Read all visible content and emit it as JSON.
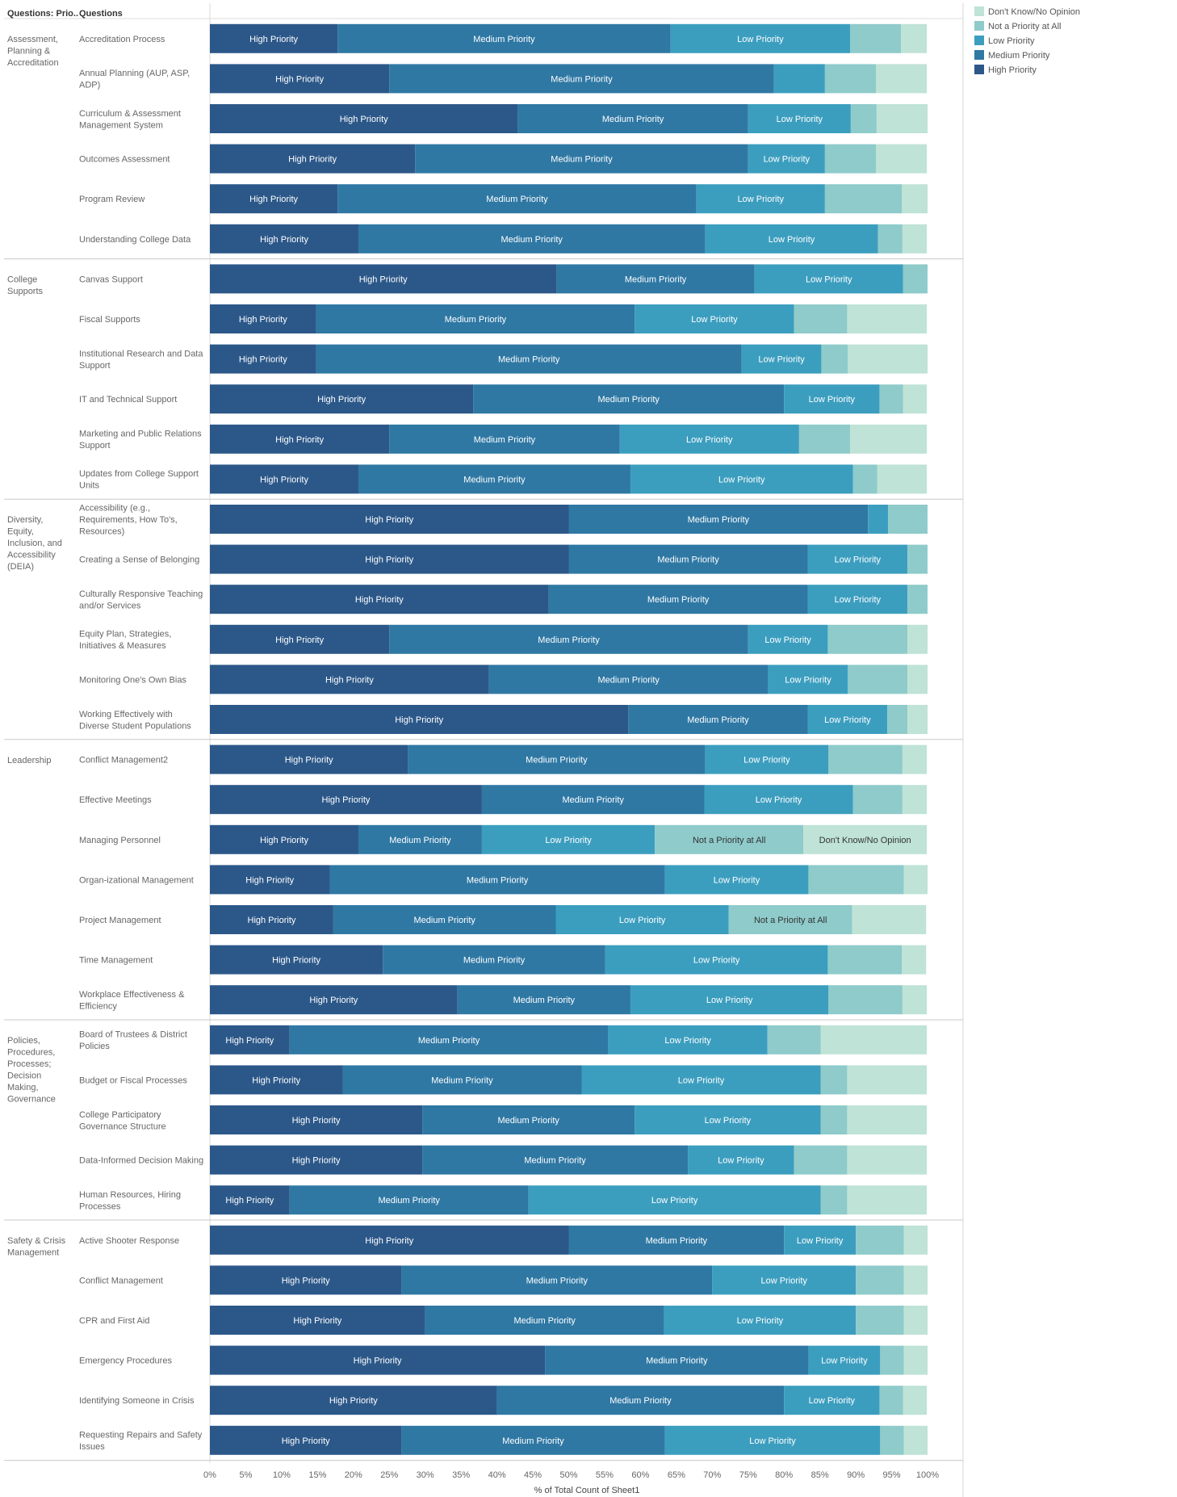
{
  "header": {
    "group_col": "Questions: Prio..",
    "question_col": "Questions"
  },
  "legend": [
    {
      "name": "Don't Know/No Opinion",
      "color": "#bfe3d6"
    },
    {
      "name": "Not a Priority at All",
      "color": "#8ecbca"
    },
    {
      "name": "Low Priority",
      "color": "#3c9ebf"
    },
    {
      "name": "Medium Priority",
      "color": "#2f78a4"
    },
    {
      "name": "High Priority",
      "color": "#2c5889"
    }
  ],
  "chart_data": {
    "type": "bar",
    "orientation": "horizontal",
    "stacked": true,
    "xlabel": "% of Total Count of Sheet1",
    "xlim": [
      0,
      100
    ],
    "xticks": [
      "0%",
      "5%",
      "10%",
      "15%",
      "20%",
      "25%",
      "30%",
      "35%",
      "40%",
      "45%",
      "50%",
      "55%",
      "60%",
      "65%",
      "70%",
      "75%",
      "80%",
      "85%",
      "90%",
      "95%",
      "100%"
    ],
    "series_order": [
      "High Priority",
      "Medium Priority",
      "Low Priority",
      "Not a Priority at All",
      "Don't Know/No Opinion"
    ],
    "groups": [
      {
        "name": [
          "Assessment,",
          "Planning &",
          "Accreditation"
        ],
        "rows": [
          {
            "label": [
              "Accreditation Process"
            ],
            "values": [
              17.8,
              46.4,
              25.0,
              7.1,
              3.6
            ]
          },
          {
            "label": [
              "Annual Planning (AUP, ASP,",
              "ADP)"
            ],
            "values": [
              25.0,
              53.6,
              7.1,
              7.1,
              7.1
            ]
          },
          {
            "label": [
              "Curriculum & Assessment",
              "Management System"
            ],
            "values": [
              42.9,
              32.1,
              14.3,
              3.6,
              7.1
            ]
          },
          {
            "label": [
              "Outcomes Assessment"
            ],
            "values": [
              28.6,
              46.4,
              10.7,
              7.1,
              7.1
            ]
          },
          {
            "label": [
              "Program Review"
            ],
            "values": [
              17.8,
              50.0,
              17.9,
              10.7,
              3.6
            ]
          },
          {
            "label": [
              "Understanding College Data"
            ],
            "values": [
              20.7,
              48.3,
              24.1,
              3.4,
              3.4
            ]
          }
        ]
      },
      {
        "name": [
          "College",
          "Supports"
        ],
        "rows": [
          {
            "label": [
              "Canvas Support"
            ],
            "values": [
              48.3,
              27.6,
              20.7,
              3.4,
              0
            ]
          },
          {
            "label": [
              "Fiscal Supports"
            ],
            "values": [
              14.8,
              44.4,
              22.2,
              7.4,
              11.1
            ]
          },
          {
            "label": [
              "Institutional Research and Data",
              "Support"
            ],
            "values": [
              14.8,
              59.3,
              11.1,
              3.7,
              11.1
            ]
          },
          {
            "label": [
              "IT and Technical Support"
            ],
            "values": [
              36.7,
              43.3,
              13.3,
              3.3,
              3.3
            ]
          },
          {
            "label": [
              "Marketing and Public Relations",
              "Support"
            ],
            "values": [
              25.0,
              32.1,
              25.0,
              7.1,
              10.7
            ]
          },
          {
            "label": [
              "Updates from College Support",
              "Units"
            ],
            "values": [
              20.7,
              37.9,
              31.0,
              3.4,
              6.9
            ]
          }
        ]
      },
      {
        "name": [
          "Diversity,",
          "Equity,",
          "Inclusion, and",
          "Accessibility",
          "(DEIA)"
        ],
        "rows": [
          {
            "label": [
              "Accessibility (e.g.,",
              "Requirements, How To's,",
              "Resources)"
            ],
            "values": [
              50.0,
              41.7,
              2.8,
              5.5,
              0
            ]
          },
          {
            "label": [
              "Creating a Sense of Belonging"
            ],
            "values": [
              50.0,
              33.3,
              13.9,
              2.8,
              0
            ]
          },
          {
            "label": [
              "Culturally Responsive Teaching",
              "and/or Services"
            ],
            "values": [
              47.2,
              36.1,
              13.9,
              2.8,
              0
            ]
          },
          {
            "label": [
              "Equity Plan, Strategies,",
              "Initiatives & Measures"
            ],
            "values": [
              25.0,
              50.0,
              11.1,
              11.1,
              2.8
            ]
          },
          {
            "label": [
              "Monitoring One's Own Bias"
            ],
            "values": [
              38.9,
              38.9,
              11.1,
              8.3,
              2.8
            ]
          },
          {
            "label": [
              "Working Effectively with",
              "Diverse Student Populations"
            ],
            "values": [
              58.3,
              25.0,
              11.1,
              2.8,
              2.8
            ]
          }
        ]
      },
      {
        "name": [
          "Leadership"
        ],
        "rows": [
          {
            "label": [
              "Conflict Management2"
            ],
            "values": [
              27.6,
              41.4,
              17.2,
              10.3,
              3.4
            ]
          },
          {
            "label": [
              "Effective Meetings"
            ],
            "values": [
              37.9,
              31.0,
              20.7,
              6.9,
              3.4
            ]
          },
          {
            "label": [
              "Managing Personnel"
            ],
            "values": [
              20.7,
              17.2,
              24.1,
              20.7,
              17.2
            ]
          },
          {
            "label": [
              "Organ-izational Management"
            ],
            "values": [
              16.7,
              46.7,
              20.0,
              13.3,
              3.3
            ]
          },
          {
            "label": [
              "Project Management"
            ],
            "values": [
              17.2,
              31.0,
              24.1,
              17.2,
              10.3
            ]
          },
          {
            "label": [
              "Time Management"
            ],
            "values": [
              24.1,
              31.0,
              31.0,
              10.3,
              3.4
            ]
          },
          {
            "label": [
              "Workplace Effectiveness &",
              "Efficiency"
            ],
            "values": [
              34.5,
              24.1,
              27.6,
              10.3,
              3.4
            ]
          }
        ]
      },
      {
        "name": [
          "Policies,",
          "Procedures,",
          "Processes;",
          "Decision",
          "Making,",
          "Governance"
        ],
        "rows": [
          {
            "label": [
              "Board of Trustees & District",
              "Policies"
            ],
            "values": [
              11.1,
              44.4,
              22.2,
              7.4,
              14.8
            ]
          },
          {
            "label": [
              "Budget or Fiscal Processes"
            ],
            "values": [
              18.5,
              33.3,
              33.3,
              3.7,
              11.1
            ]
          },
          {
            "label": [
              "College Participatory",
              "Governance Structure"
            ],
            "values": [
              29.6,
              29.6,
              25.9,
              3.7,
              11.1
            ]
          },
          {
            "label": [
              "Data-Informed Decision Making"
            ],
            "values": [
              29.6,
              37.0,
              14.8,
              7.4,
              11.1
            ]
          },
          {
            "label": [
              "Human Resources, Hiring",
              "Processes"
            ],
            "values": [
              11.1,
              33.3,
              40.7,
              3.7,
              11.1
            ]
          }
        ]
      },
      {
        "name": [
          "Safety & Crisis",
          "Management"
        ],
        "rows": [
          {
            "label": [
              "Active Shooter Response"
            ],
            "values": [
              50.0,
              30.0,
              10.0,
              6.7,
              3.3
            ]
          },
          {
            "label": [
              "Conflict Management"
            ],
            "values": [
              26.7,
              43.3,
              20.0,
              6.7,
              3.3
            ]
          },
          {
            "label": [
              "CPR and First Aid"
            ],
            "values": [
              30.0,
              33.3,
              26.7,
              6.7,
              3.3
            ]
          },
          {
            "label": [
              "Emergency Procedures"
            ],
            "values": [
              46.7,
              36.7,
              10.0,
              3.3,
              3.3
            ]
          },
          {
            "label": [
              "Identifying Someone in Crisis"
            ],
            "values": [
              40.0,
              40.0,
              13.3,
              3.3,
              3.3
            ]
          },
          {
            "label": [
              "Requesting Repairs and Safety",
              "Issues"
            ],
            "values": [
              26.7,
              36.7,
              30.0,
              3.3,
              3.3
            ]
          }
        ]
      }
    ]
  }
}
